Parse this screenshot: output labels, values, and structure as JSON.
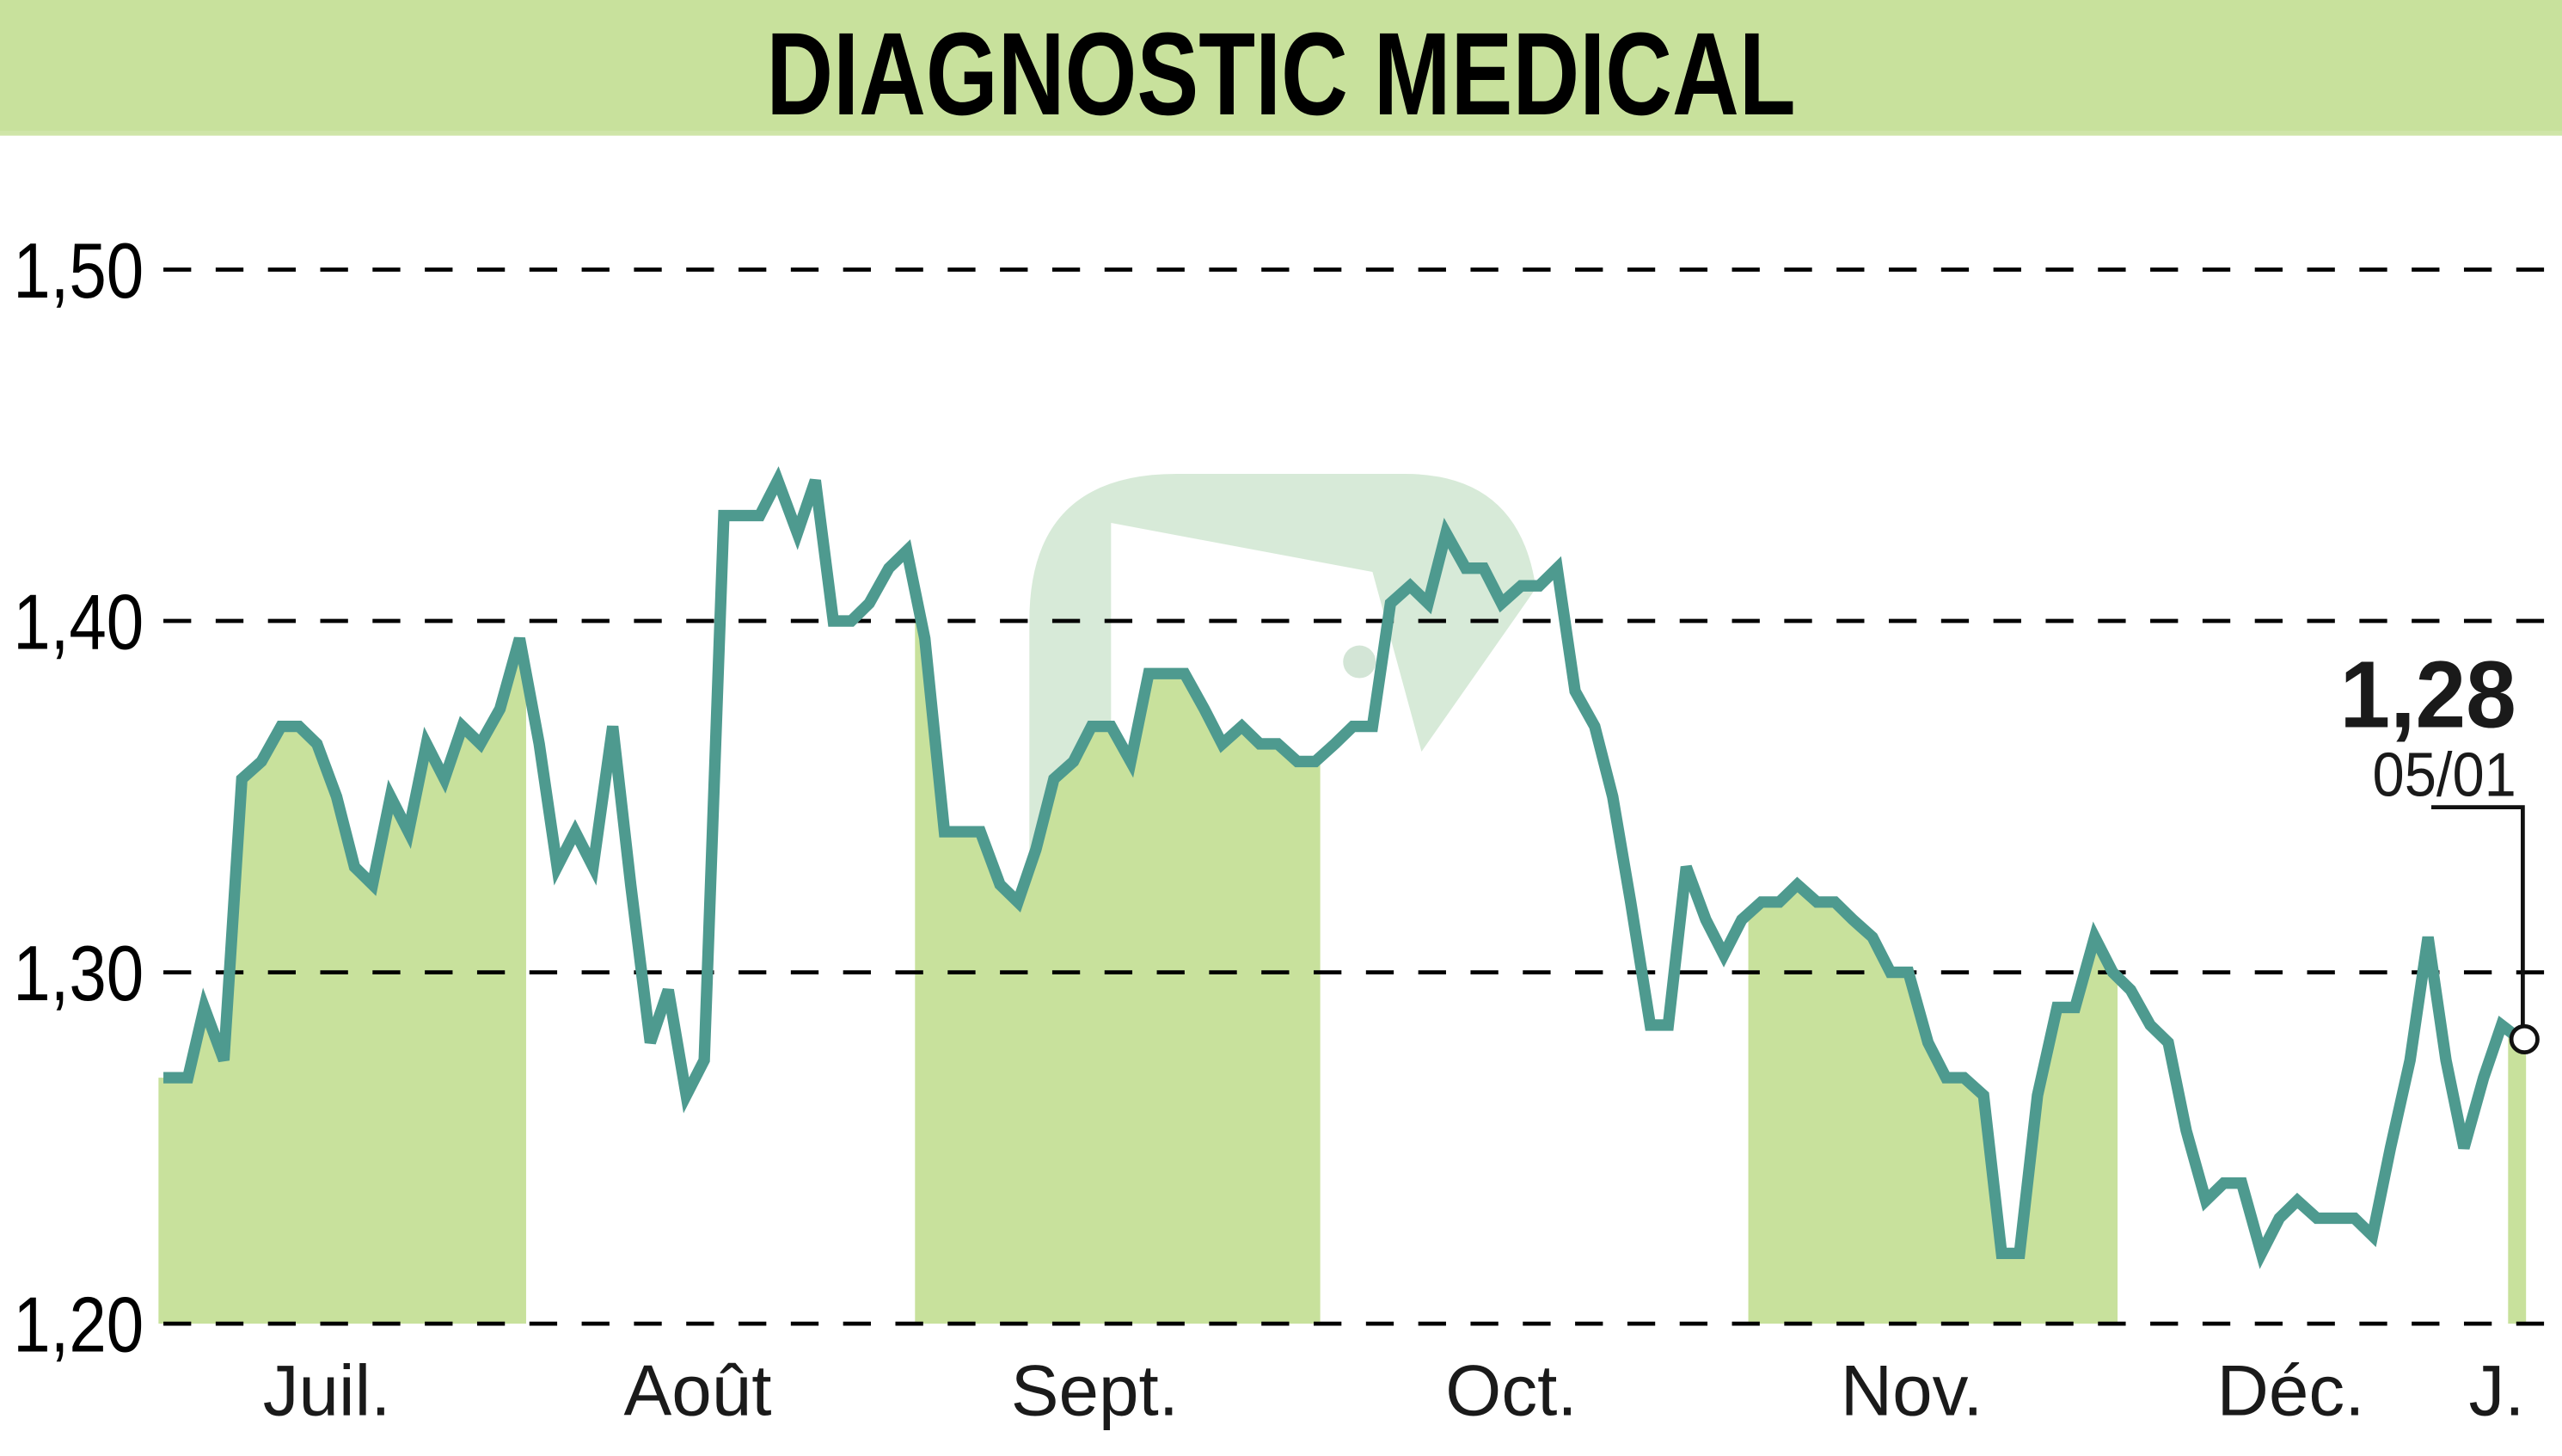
{
  "header": {
    "title": "DIAGNOSTIC MEDICAL",
    "background_color": "#c8e19c"
  },
  "colors": {
    "line": "#4e9a8f",
    "band": "#c8e19c",
    "grid": "#000000",
    "watermark": "#cfe3d2"
  },
  "last_value": {
    "value_label": "1,28",
    "date_label": "05/01"
  },
  "chart_data": {
    "type": "line",
    "title": "DIAGNOSTIC MEDICAL",
    "xlabel": "",
    "ylabel": "",
    "ylim": [
      1.2,
      1.5
    ],
    "y_ticks": [
      "1,20",
      "1,30",
      "1,40",
      "1,50"
    ],
    "y_tick_values": [
      1.2,
      1.3,
      1.4,
      1.5
    ],
    "grid": "horizontal dashed",
    "legend": "none",
    "x_tick_labels": [
      {
        "label": "Juil.",
        "x": 200
      },
      {
        "label": "Août",
        "x": 427
      },
      {
        "label": "Sept.",
        "x": 670
      },
      {
        "label": "Oct.",
        "x": 925
      },
      {
        "label": "Nov.",
        "x": 1170
      },
      {
        "label": "Déc.",
        "x": 1402
      },
      {
        "label": "J.",
        "x": 1528
      }
    ],
    "shaded_months": [
      {
        "label": "Juil.",
        "x0": 97,
        "x1": 322
      },
      {
        "label": "Sept.",
        "x0": 560,
        "x1": 808
      },
      {
        "label": "Nov.",
        "x0": 1070,
        "x1": 1296
      },
      {
        "label": "J.",
        "x0": 1535,
        "x1": 1546
      }
    ],
    "series": [
      {
        "name": "DIAGNOSTIC MEDICAL",
        "x": [
          100,
          115,
          125,
          137,
          148,
          160,
          172,
          183,
          194,
          206,
          217,
          228,
          239,
          250,
          261,
          272,
          283,
          294,
          306,
          318,
          330,
          341,
          352,
          363,
          375,
          386,
          398,
          409,
          420,
          431,
          443,
          454,
          465,
          476,
          488,
          499,
          510,
          521,
          532,
          544,
          555,
          566,
          578,
          589,
          600,
          612,
          623,
          634,
          645,
          657,
          668,
          680,
          692,
          703,
          714,
          725,
          737,
          748,
          760,
          771,
          782,
          794,
          805,
          817,
          828,
          840,
          851,
          863,
          874,
          885,
          897,
          908,
          919,
          931,
          942,
          953,
          964,
          976,
          987,
          998,
          1010,
          1021,
          1032,
          1044,
          1055,
          1066,
          1078,
          1089,
          1100,
          1112,
          1123,
          1134,
          1146,
          1157,
          1168,
          1180,
          1191,
          1202,
          1214,
          1225,
          1236,
          1247,
          1259,
          1270,
          1282,
          1293,
          1304,
          1316,
          1327,
          1338,
          1350,
          1361,
          1372,
          1384,
          1395,
          1406,
          1418,
          1429,
          1441,
          1452,
          1463,
          1475,
          1486,
          1497,
          1508,
          1520,
          1531,
          1545
        ],
        "values": [
          1.27,
          1.27,
          1.29,
          1.275,
          1.355,
          1.36,
          1.37,
          1.37,
          1.365,
          1.35,
          1.33,
          1.325,
          1.35,
          1.34,
          1.365,
          1.355,
          1.37,
          1.365,
          1.375,
          1.395,
          1.365,
          1.33,
          1.34,
          1.33,
          1.37,
          1.325,
          1.28,
          1.295,
          1.265,
          1.275,
          1.43,
          1.43,
          1.43,
          1.44,
          1.425,
          1.44,
          1.4,
          1.4,
          1.405,
          1.415,
          1.42,
          1.395,
          1.34,
          1.34,
          1.34,
          1.325,
          1.32,
          1.335,
          1.355,
          1.36,
          1.37,
          1.37,
          1.36,
          1.385,
          1.385,
          1.385,
          1.375,
          1.365,
          1.37,
          1.365,
          1.365,
          1.36,
          1.36,
          1.365,
          1.37,
          1.37,
          1.405,
          1.41,
          1.405,
          1.425,
          1.415,
          1.415,
          1.405,
          1.41,
          1.41,
          1.415,
          1.38,
          1.37,
          1.35,
          1.32,
          1.285,
          1.285,
          1.33,
          1.315,
          1.305,
          1.315,
          1.32,
          1.32,
          1.325,
          1.32,
          1.32,
          1.315,
          1.31,
          1.3,
          1.3,
          1.28,
          1.27,
          1.27,
          1.265,
          1.22,
          1.22,
          1.265,
          1.29,
          1.29,
          1.31,
          1.3,
          1.295,
          1.285,
          1.28,
          1.255,
          1.235,
          1.24,
          1.24,
          1.22,
          1.23,
          1.235,
          1.23,
          1.23,
          1.23,
          1.225,
          1.25,
          1.275,
          1.31,
          1.275,
          1.25,
          1.27,
          1.285,
          1.28
        ]
      }
    ],
    "annotations": [
      {
        "text": "1,28",
        "type": "last value"
      },
      {
        "text": "05/01",
        "type": "last date"
      }
    ]
  }
}
